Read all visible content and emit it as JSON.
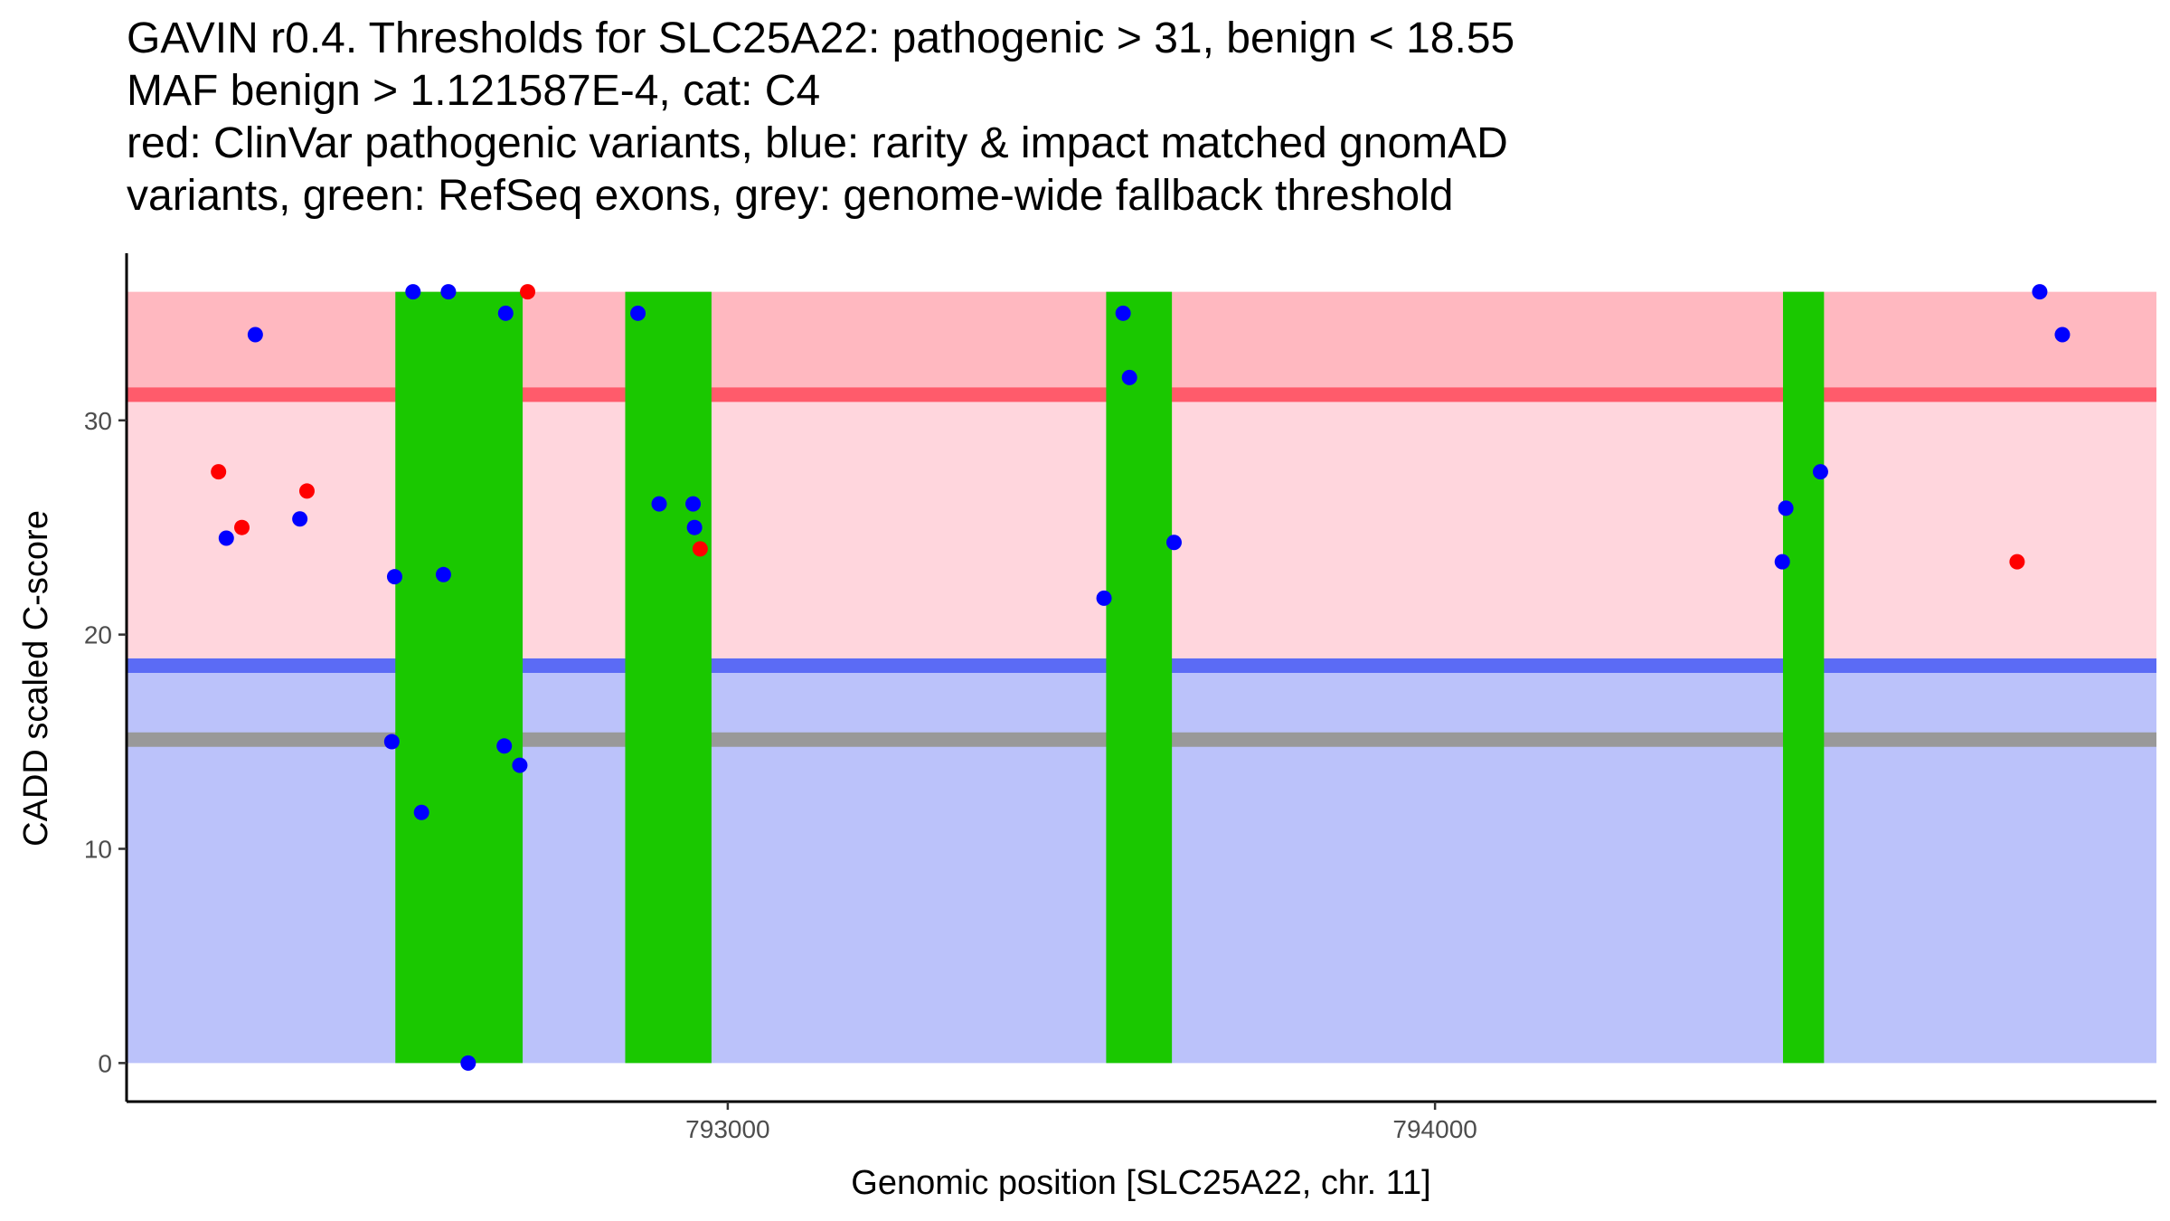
{
  "title": {
    "line1": "GAVIN r0.4. Thresholds for SLC25A22: pathogenic > 31, benign < 18.55",
    "line2": "MAF benign > 1.121587E-4, cat: C4",
    "line3": "red: ClinVar pathogenic variants, blue: rarity & impact matched gnomAD",
    "line4": "variants, green: RefSeq exons, grey: genome-wide fallback threshold"
  },
  "chart_data": {
    "type": "scatter",
    "xlabel": "Genomic position [SLC25A22, chr. 11]",
    "ylabel": "CADD scaled C-score",
    "xlim": [
      792150,
      795020
    ],
    "ylim": [
      -1.8,
      37.8
    ],
    "x_ticks": [
      793000,
      794000
    ],
    "x_tick_labels": [
      "793000",
      "794000"
    ],
    "y_ticks": [
      0,
      10,
      20,
      30
    ],
    "y_tick_labels": [
      "0",
      "10",
      "20",
      "30"
    ],
    "colors": {
      "pathogenic_zone": "#FFB8C0",
      "intermediate_zone": "#FFD6DD",
      "benign_zone": "#BBC2FA",
      "pathogenic_line": "#FF5B6B",
      "benign_line": "#5B6BF5",
      "fallback_line": "#999999",
      "exon": "#1AC800",
      "pathogenic_point": "#FF0000",
      "benign_point": "#0000FF"
    },
    "zones": [
      {
        "name": "pathogenic",
        "from": 31,
        "to": 36
      },
      {
        "name": "intermediate",
        "from": 18.55,
        "to": 31
      },
      {
        "name": "benign",
        "from": 0,
        "to": 18.55
      }
    ],
    "threshold_lines": [
      {
        "name": "pathogenic",
        "y": 31.2
      },
      {
        "name": "benign",
        "y": 18.55
      },
      {
        "name": "fallback",
        "y": 15.1
      }
    ],
    "exons": [
      {
        "start": 792530,
        "end": 792710,
        "top": 36
      },
      {
        "start": 792855,
        "end": 792977,
        "top": 36
      },
      {
        "start": 793535,
        "end": 793628,
        "top": 36
      },
      {
        "start": 794492,
        "end": 794550,
        "top": 36
      }
    ],
    "series": [
      {
        "name": "ClinVar pathogenic variants",
        "color": "#FF0000",
        "points": [
          {
            "x": 792280,
            "y": 27.6
          },
          {
            "x": 792313,
            "y": 25.0
          },
          {
            "x": 792405,
            "y": 26.7
          },
          {
            "x": 792717,
            "y": 36.0
          },
          {
            "x": 792961,
            "y": 24.0
          },
          {
            "x": 794823,
            "y": 23.4
          }
        ]
      },
      {
        "name": "rarity & impact matched gnomAD variants",
        "color": "#0000FF",
        "points": [
          {
            "x": 792291,
            "y": 24.5
          },
          {
            "x": 792332,
            "y": 34.0
          },
          {
            "x": 792395,
            "y": 25.4
          },
          {
            "x": 792529,
            "y": 22.7
          },
          {
            "x": 792525,
            "y": 15.0
          },
          {
            "x": 792555,
            "y": 36.0
          },
          {
            "x": 792567,
            "y": 11.7
          },
          {
            "x": 792598,
            "y": 22.8
          },
          {
            "x": 792605,
            "y": 36.0
          },
          {
            "x": 792633,
            "y": 0.0
          },
          {
            "x": 792686,
            "y": 35.0
          },
          {
            "x": 792684,
            "y": 14.8
          },
          {
            "x": 792706,
            "y": 13.9
          },
          {
            "x": 792873,
            "y": 35.0
          },
          {
            "x": 792903,
            "y": 26.1
          },
          {
            "x": 792951,
            "y": 26.1
          },
          {
            "x": 792953,
            "y": 25.0
          },
          {
            "x": 793532,
            "y": 21.7
          },
          {
            "x": 793559,
            "y": 35.0
          },
          {
            "x": 793568,
            "y": 32.0
          },
          {
            "x": 793631,
            "y": 24.3
          },
          {
            "x": 794491,
            "y": 23.4
          },
          {
            "x": 794496,
            "y": 25.9
          },
          {
            "x": 794545,
            "y": 27.6
          },
          {
            "x": 794855,
            "y": 36.0
          },
          {
            "x": 794887,
            "y": 34.0
          }
        ]
      }
    ]
  }
}
